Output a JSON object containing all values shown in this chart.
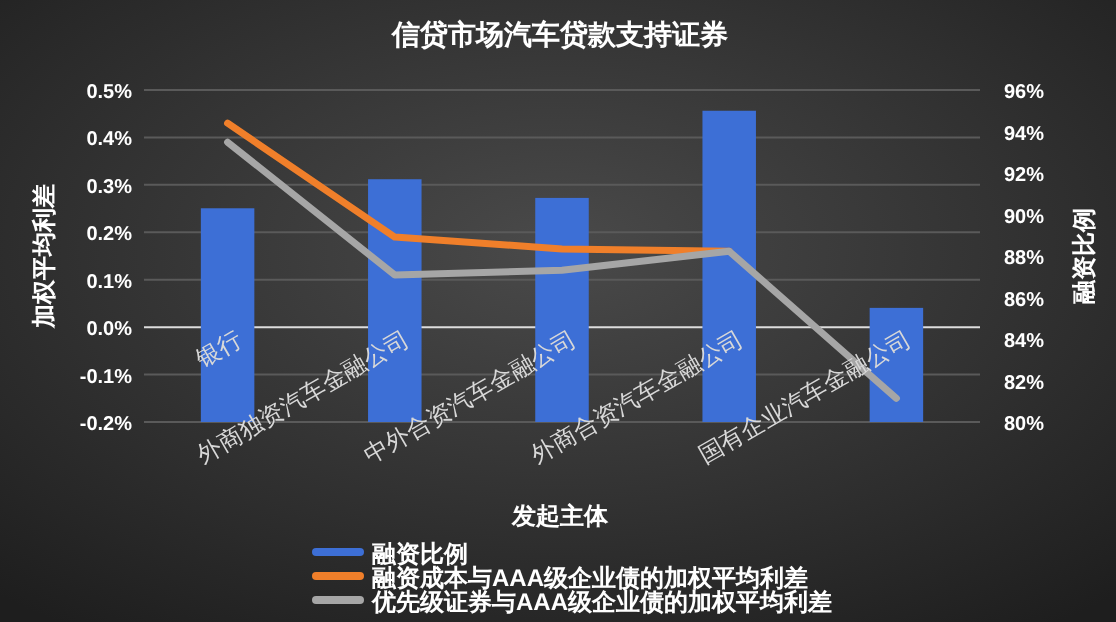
{
  "chart_data": {
    "type": "bar",
    "title": "信贷市场汽车贷款支持证券",
    "xlabel": "发起主体",
    "ylabel": "加权平均利差",
    "y2label": "融资比例",
    "categories": [
      "银行",
      "外商独资汽车金融公司",
      "中外合资汽车金融公司",
      "外商合资汽车金融公司",
      "国有企业汽车金融公司"
    ],
    "series": [
      {
        "name": "融资比例",
        "axis": "y2",
        "color": "#3d6fd6",
        "values": [
          90.3,
          91.7,
          90.8,
          95.0,
          85.5
        ]
      },
      {
        "name": "融资成本与AAA级企业债的加权平均利差",
        "type": "line",
        "color": "#f07f2a",
        "values": [
          0.43,
          0.19,
          0.165,
          0.16,
          null
        ]
      },
      {
        "name": "优先级证券与AAA级企业债的加权平均利差",
        "type": "line",
        "color": "#a6a6a6",
        "values": [
          0.39,
          0.11,
          0.12,
          0.16,
          -0.15
        ]
      }
    ],
    "ylim": [
      -0.2,
      0.5
    ],
    "yticks": [
      {
        "value": -0.2,
        "label": "-0.2%"
      },
      {
        "value": -0.1,
        "label": "-0.1%"
      },
      {
        "value": 0,
        "label": "0.0%"
      },
      {
        "value": 0.1,
        "label": "0.1%"
      },
      {
        "value": 0.2,
        "label": "0.2%"
      },
      {
        "value": 0.3,
        "label": "0.3%"
      },
      {
        "value": 0.4,
        "label": "0.4%"
      },
      {
        "value": 0.5,
        "label": "0.5%"
      }
    ],
    "y2lim": [
      80,
      96
    ],
    "y2ticks": [
      {
        "value": 80,
        "label": "80%"
      },
      {
        "value": 82,
        "label": "82%"
      },
      {
        "value": 84,
        "label": "84%"
      },
      {
        "value": 86,
        "label": "86%"
      },
      {
        "value": 88,
        "label": "88%"
      },
      {
        "value": 90,
        "label": "90%"
      },
      {
        "value": 92,
        "label": "92%"
      },
      {
        "value": 94,
        "label": "94%"
      },
      {
        "value": 96,
        "label": "96%"
      }
    ],
    "grid": "y",
    "legend": "bottom",
    "marker": "none",
    "line_style": "solid"
  }
}
